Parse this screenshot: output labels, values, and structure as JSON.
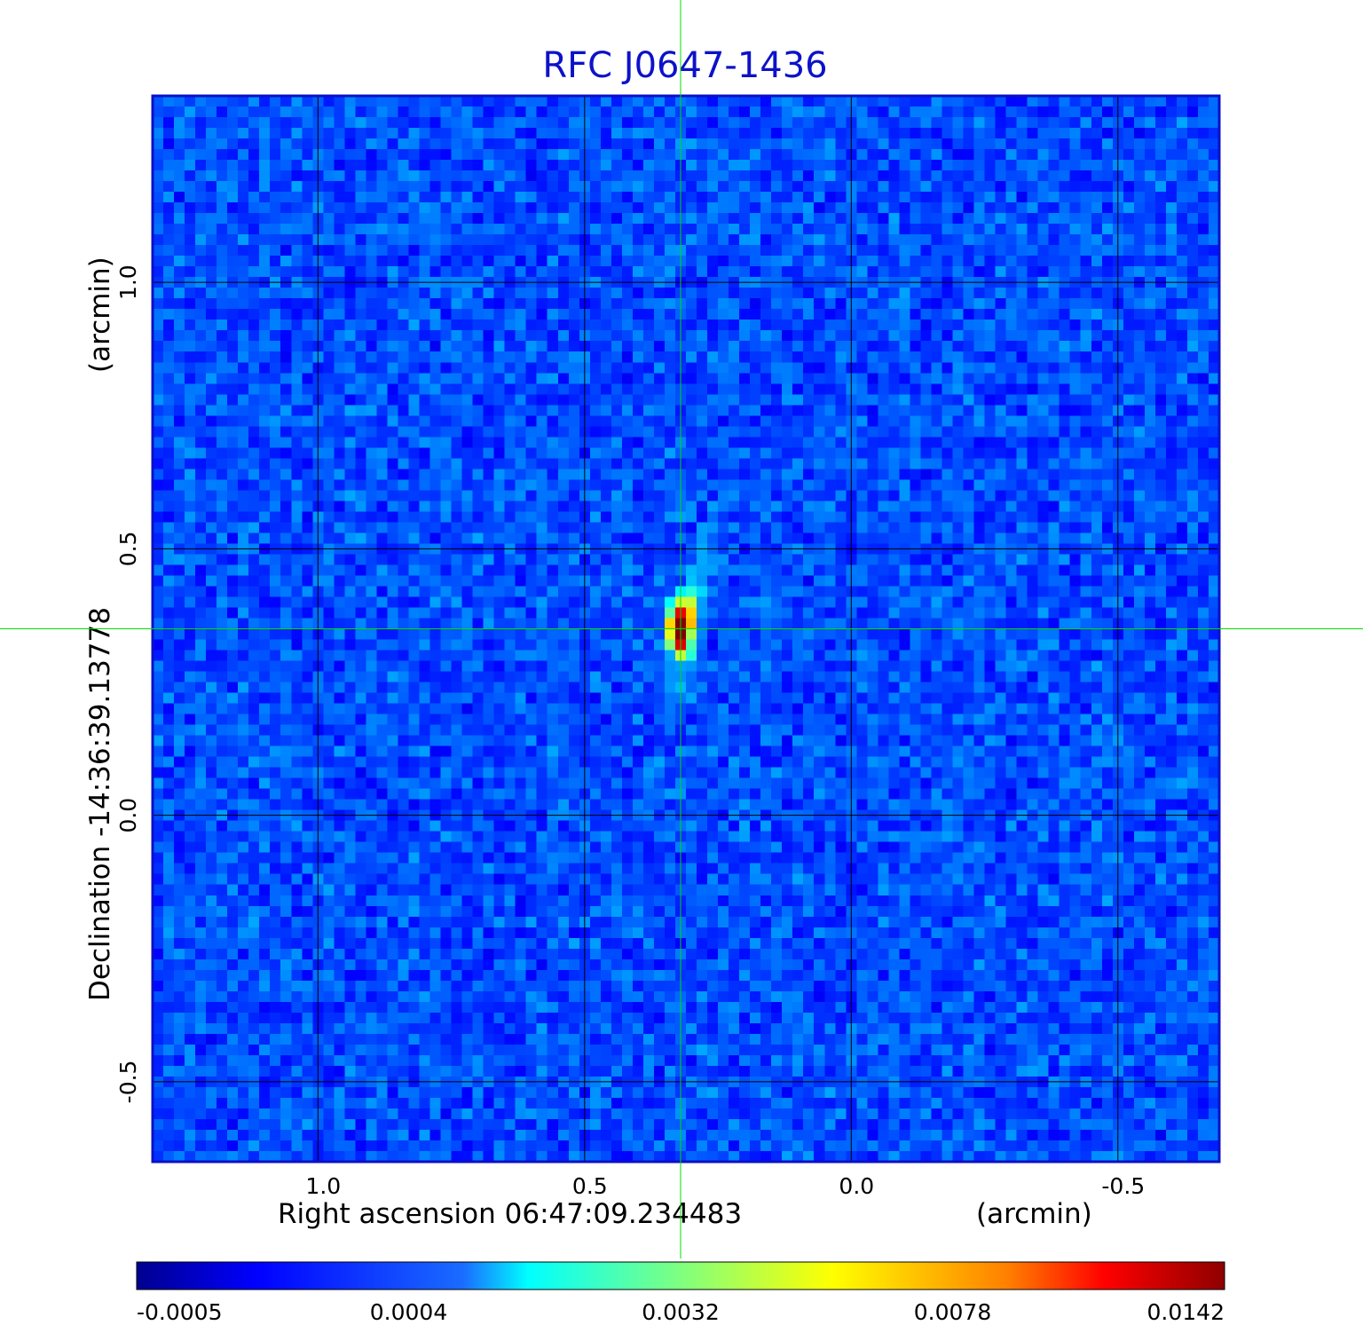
{
  "chart_data": {
    "type": "heatmap",
    "title": "RFC J0647-1436",
    "xlabel": "Right ascension  06:47:09.234483",
    "xlabel_unit": "(arcmin)",
    "ylabel": "Declination  -14:36:39.13778",
    "ylabel_unit": "(arcmin)",
    "xlim": [
      1.31,
      -0.69
    ],
    "ylim": [
      -0.65,
      1.35
    ],
    "x_ticks": [
      {
        "value": 1.0,
        "label": "1.0"
      },
      {
        "value": 0.5,
        "label": "0.5"
      },
      {
        "value": 0.0,
        "label": "0.0"
      },
      {
        "value": -0.5,
        "label": "-0.5"
      }
    ],
    "y_ticks": [
      {
        "value": 1.0,
        "label": "1.0"
      },
      {
        "value": 0.5,
        "label": "0.5"
      },
      {
        "value": 0.0,
        "label": "0.0"
      },
      {
        "value": -0.5,
        "label": "-0.5"
      }
    ],
    "grid": true,
    "source": {
      "x": 0.32,
      "y": 0.35,
      "peak": 0.0142
    },
    "crosshair": {
      "x": 0.32,
      "y": 0.35,
      "color": "#00dd00"
    },
    "colorbar": {
      "colormap": "jet",
      "ticks": [
        "-0.0005",
        "0.0004",
        "0.0032",
        "0.0078",
        "0.0142"
      ]
    },
    "colors": {
      "title": "#0d12c9",
      "frame": "#0a10c8",
      "grid": "#000000",
      "crosshair": "#00dd00"
    }
  }
}
